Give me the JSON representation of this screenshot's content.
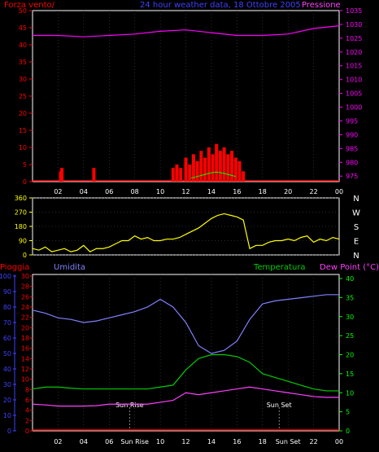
{
  "header": {
    "left": "Forza vento/",
    "center": "24 hour weather data, 18 Ottobre 2005",
    "right": "Pressione"
  },
  "colors": {
    "background": "#000000",
    "wind": "#ff0000",
    "gust": "#00ff00",
    "pressure": "#ff00ff",
    "direction": "#ffff00",
    "humidity": "#8080ff",
    "temperature": "#00cc00",
    "dewpoint": "#ff40ff",
    "rain": "#ff0000",
    "axis_blue": "#4040ff",
    "axis_green": "#00ff00",
    "sun": "#ffffff",
    "grid": "#555555"
  },
  "chart_data": [
    {
      "type": "line",
      "title": "24 hour weather data, 18 Ottobre 2005",
      "xlabel": "",
      "x_ticks": [
        "02",
        "04",
        "06",
        "08",
        "10",
        "12",
        "14",
        "16",
        "18",
        "20",
        "22",
        "00"
      ],
      "y_left_label": "Forza vento/",
      "y_left_ticks": [
        0,
        5,
        10,
        15,
        20,
        25,
        30,
        35,
        40,
        45,
        50
      ],
      "y_right_label": "Pressione",
      "y_right_ticks": [
        975,
        980,
        985,
        990,
        995,
        1000,
        1005,
        1010,
        1015,
        1020,
        1025,
        1030,
        1035
      ],
      "series": [
        {
          "name": "Pressione",
          "axis": "right",
          "x": [
            0,
            2,
            4,
            6,
            8,
            10,
            12,
            14,
            16,
            18,
            20,
            22,
            24
          ],
          "values": [
            1026,
            1026,
            1025.5,
            1026,
            1026.5,
            1027.5,
            1028,
            1027,
            1026,
            1026,
            1026.5,
            1028.5,
            1029.5
          ]
        },
        {
          "axis": "left",
          "x": [
            2.2,
            2.3,
            4.8,
            11.0,
            11.3,
            11.6,
            12.0,
            12.3,
            12.6,
            12.9,
            13.2,
            13.5,
            13.8,
            14.1,
            14.4,
            14.7,
            15.0,
            15.3,
            15.6,
            15.9,
            16.2,
            16.5
          ],
          "values": [
            3,
            4,
            4,
            4,
            5,
            4,
            7,
            5,
            8,
            6,
            9,
            7,
            10,
            8,
            11,
            9,
            10,
            8,
            9,
            7,
            6,
            3
          ]
        },
        {
          "axis": "left",
          "x": [
            12.4,
            12.9,
            13.4,
            13.9,
            14.4,
            14.9,
            15.4,
            15.9
          ],
          "values": [
            1,
            1.5,
            2,
            2.5,
            2.8,
            2.5,
            2,
            1.5
          ]
        }
      ]
    },
    {
      "type": "line",
      "right_labels": [
        "N",
        "W",
        "S",
        "E",
        "N"
      ],
      "y_ticks": [
        0,
        90,
        180,
        270,
        360
      ],
      "series": [
        {
          "x": [
            0,
            0.5,
            1,
            1.5,
            2,
            2.5,
            3,
            3.5,
            4,
            4.5,
            5,
            5.5,
            6,
            6.5,
            7,
            7.5,
            8,
            8.5,
            9,
            9.5,
            10,
            10.5,
            11,
            11.5,
            12,
            12.5,
            13,
            13.5,
            14,
            14.5,
            15,
            15.5,
            16,
            16.5,
            17,
            17.5,
            18,
            18.5,
            19,
            19.5,
            20,
            20.5,
            21,
            21.5,
            22,
            22.5,
            23,
            23.5,
            24
          ],
          "values": [
            40,
            30,
            50,
            20,
            30,
            40,
            20,
            30,
            60,
            20,
            40,
            40,
            50,
            70,
            90,
            90,
            120,
            100,
            110,
            90,
            90,
            100,
            100,
            110,
            130,
            150,
            170,
            200,
            230,
            250,
            260,
            250,
            240,
            220,
            40,
            60,
            60,
            80,
            90,
            90,
            100,
            90,
            110,
            120,
            80,
            100,
            90,
            110,
            100
          ]
        }
      ]
    },
    {
      "type": "line",
      "labels": {
        "rain": "Pioggia",
        "humidity": "Umidita",
        "temperature": "Temperatura",
        "dewpoint": "Dew Point (°C)"
      },
      "x_ticks": [
        "02",
        "04",
        "06",
        "Sun Rise",
        "10",
        "12",
        "14",
        "16",
        "18",
        "Sun Set",
        "22",
        "00"
      ],
      "annotations": [
        {
          "text": "Sun Rise",
          "x": 7.6
        },
        {
          "text": "Sun Set",
          "x": 19.3
        }
      ],
      "humidity_ticks": [
        0,
        10,
        20,
        30,
        40,
        50,
        60,
        70,
        80,
        90,
        100
      ],
      "rain_ticks": [
        0,
        2,
        4,
        6,
        8,
        10,
        12,
        14,
        16,
        18,
        20,
        22,
        24,
        26,
        28,
        30
      ],
      "temp_ticks": [
        0,
        5,
        10,
        15,
        20,
        25,
        30,
        35,
        40
      ],
      "series": [
        {
          "name": "Umidita",
          "axis": "humidity",
          "x": [
            0,
            1,
            2,
            3,
            4,
            5,
            6,
            7,
            8,
            9,
            10,
            11,
            12,
            13,
            14,
            15,
            16,
            17,
            18,
            19,
            20,
            21,
            22,
            23,
            24
          ],
          "values": [
            78,
            76,
            73,
            72,
            70,
            71,
            73,
            75,
            77,
            80,
            85,
            80,
            70,
            55,
            50,
            52,
            58,
            72,
            82,
            84,
            85,
            86,
            87,
            88,
            88
          ]
        },
        {
          "name": "Temperatura",
          "axis": "temp",
          "x": [
            0,
            1,
            2,
            3,
            4,
            5,
            6,
            7,
            8,
            9,
            10,
            11,
            12,
            13,
            14,
            15,
            16,
            17,
            18,
            19,
            20,
            21,
            22,
            23,
            24
          ],
          "values": [
            11,
            11.5,
            11.5,
            11.2,
            11,
            11,
            11,
            11,
            11,
            11,
            11.5,
            12,
            16,
            19,
            20,
            20,
            19.5,
            18,
            15,
            14,
            13,
            12,
            11,
            10.5,
            10.5
          ]
        },
        {
          "name": "Dew Point (°C)",
          "axis": "temp",
          "x": [
            0,
            1,
            2,
            3,
            4,
            5,
            6,
            7,
            8,
            9,
            10,
            11,
            12,
            13,
            14,
            15,
            16,
            17,
            18,
            19,
            20,
            21,
            22,
            23,
            24
          ],
          "values": [
            7,
            6.8,
            6.5,
            6.5,
            6.5,
            6.6,
            7,
            7,
            7,
            7,
            7.5,
            8,
            10,
            9.5,
            10,
            10.5,
            11,
            11.5,
            11,
            10.5,
            10,
            9.5,
            9,
            8.8,
            8.8
          ]
        },
        {
          "name": "Pioggia",
          "axis": "rain",
          "x": [
            0,
            24
          ],
          "values": [
            0,
            0
          ]
        }
      ]
    }
  ]
}
